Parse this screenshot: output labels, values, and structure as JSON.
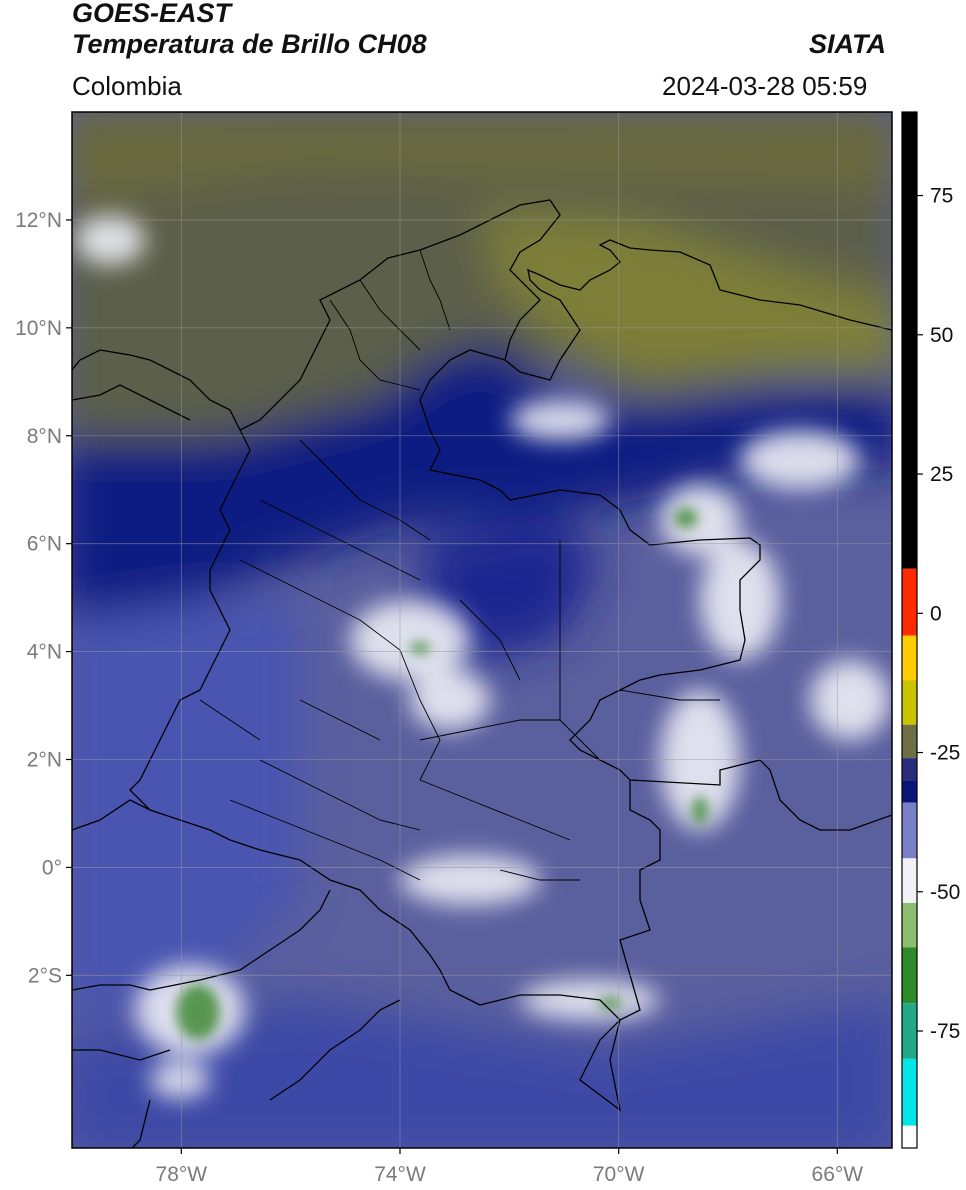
{
  "header": {
    "satellite": "GOES-EAST",
    "product": "Temperatura de Brillo CH08",
    "region": "Colombia",
    "agency": "SIATA",
    "timestamp": "2024-03-28 05:59"
  },
  "map": {
    "lon_range": [
      -80,
      -65
    ],
    "lat_range": [
      -5.2,
      14
    ],
    "lon_ticks": [
      {
        "value": -78,
        "label": "78°W"
      },
      {
        "value": -74,
        "label": "74°W"
      },
      {
        "value": -70,
        "label": "70°W"
      },
      {
        "value": -66,
        "label": "66°W"
      }
    ],
    "lat_ticks": [
      {
        "value": 12,
        "label": "12°N"
      },
      {
        "value": 10,
        "label": "10°N"
      },
      {
        "value": 8,
        "label": "8°N"
      },
      {
        "value": 6,
        "label": "6°N"
      },
      {
        "value": 4,
        "label": "4°N"
      },
      {
        "value": 2,
        "label": "2°N"
      },
      {
        "value": 0,
        "label": "0°"
      },
      {
        "value": -2,
        "label": "2°S"
      }
    ],
    "grid": true
  },
  "colorbar": {
    "range": [
      -96,
      90
    ],
    "ticks": [
      {
        "value": 75,
        "label": "75"
      },
      {
        "value": 50,
        "label": "50"
      },
      {
        "value": 25,
        "label": "25"
      },
      {
        "value": 0,
        "label": "0"
      },
      {
        "value": -25,
        "label": "-25"
      },
      {
        "value": -50,
        "label": "-50"
      },
      {
        "value": -75,
        "label": "-75"
      }
    ],
    "segments": [
      {
        "from": 8,
        "to": 90,
        "color": "#000000"
      },
      {
        "from": -4,
        "to": 8,
        "color": "#ff2a00"
      },
      {
        "from": -12,
        "to": -4,
        "color": "#ffcc00"
      },
      {
        "from": -20,
        "to": -12,
        "color": "#c8c400"
      },
      {
        "from": -26,
        "to": -20,
        "color": "#6f6f45"
      },
      {
        "from": -30,
        "to": -26,
        "color": "#2a2e7a"
      },
      {
        "from": -34,
        "to": -30,
        "color": "#0a1478"
      },
      {
        "from": -44,
        "to": -34,
        "color": "#7a80c8"
      },
      {
        "from": -52,
        "to": -44,
        "color": "#f2f2f6"
      },
      {
        "from": -60,
        "to": -52,
        "color": "#8cbd70"
      },
      {
        "from": -70,
        "to": -60,
        "color": "#2f8a2a"
      },
      {
        "from": -80,
        "to": -70,
        "color": "#22aa88"
      },
      {
        "from": -92,
        "to": -80,
        "color": "#00e6e6"
      },
      {
        "from": -96,
        "to": -92,
        "color": "#ffffff"
      }
    ]
  },
  "colors": {
    "dry_air": "#5f6248",
    "dry_air_olive": "#7b7d3a",
    "deep_blue": "#0d1880",
    "mid_blue": "#3c46a8",
    "light_blue": "#8086c6",
    "cloud_white": "#eeeef6",
    "cold_green": "#3f8a36",
    "border": "#000000",
    "grid": "#9a9a9a"
  }
}
